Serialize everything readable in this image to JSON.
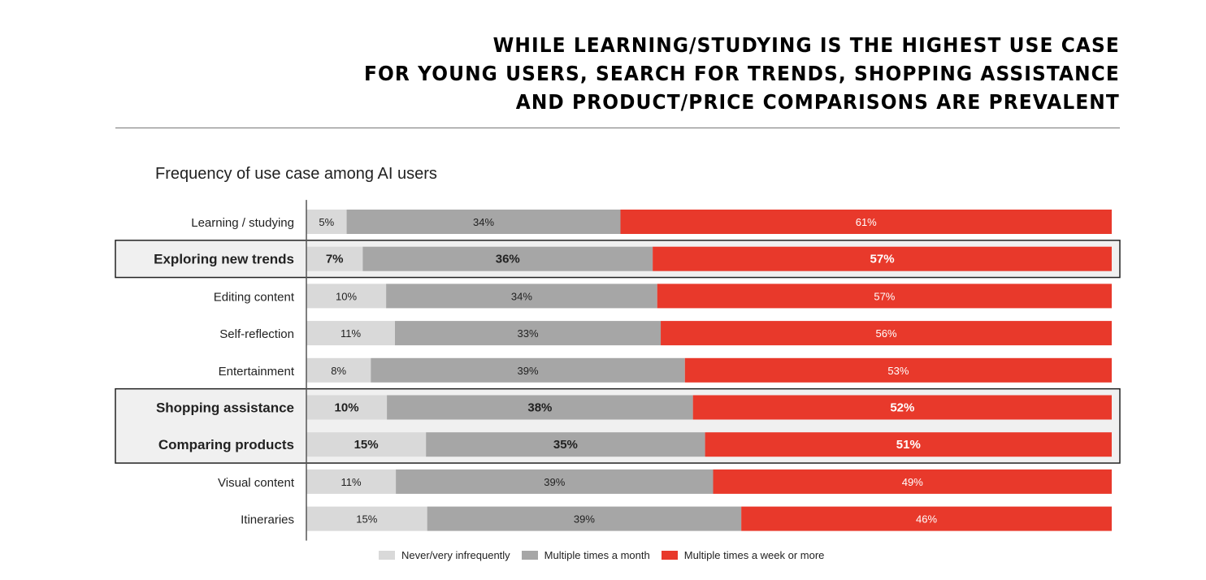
{
  "headline": {
    "lines": [
      "WHILE LEARNING/STUDYING IS THE HIGHEST USE CASE",
      "FOR YOUNG USERS, SEARCH FOR TRENDS, SHOPPING ASSISTANCE",
      "AND PRODUCT/PRICE COMPARISONS ARE PREVALENT"
    ]
  },
  "chart_data": {
    "type": "bar",
    "orientation": "horizontal",
    "stacked": true,
    "title": "Frequency of use case among AI users",
    "categories": [
      "Learning / studying",
      "Exploring new trends",
      "Editing content",
      "Self-reflection",
      "Entertainment",
      "Shopping assistance",
      "Comparing products",
      "Visual content",
      "Itineraries"
    ],
    "highlighted": [
      "Exploring new trends",
      "Shopping assistance",
      "Comparing products"
    ],
    "series": [
      {
        "name": "Never/very infrequently",
        "color": "#d9d9d9",
        "values": [
          5,
          7,
          10,
          11,
          8,
          10,
          15,
          11,
          15
        ]
      },
      {
        "name": "Multiple times a month",
        "color": "#a6a6a6",
        "values": [
          34,
          36,
          34,
          33,
          39,
          38,
          35,
          39,
          39
        ]
      },
      {
        "name": "Multiple times a week or more",
        "color": "#e8392b",
        "values": [
          61,
          57,
          57,
          56,
          53,
          52,
          51,
          49,
          46
        ]
      }
    ],
    "value_suffix": "%",
    "legend": "bottom",
    "grid": false
  }
}
